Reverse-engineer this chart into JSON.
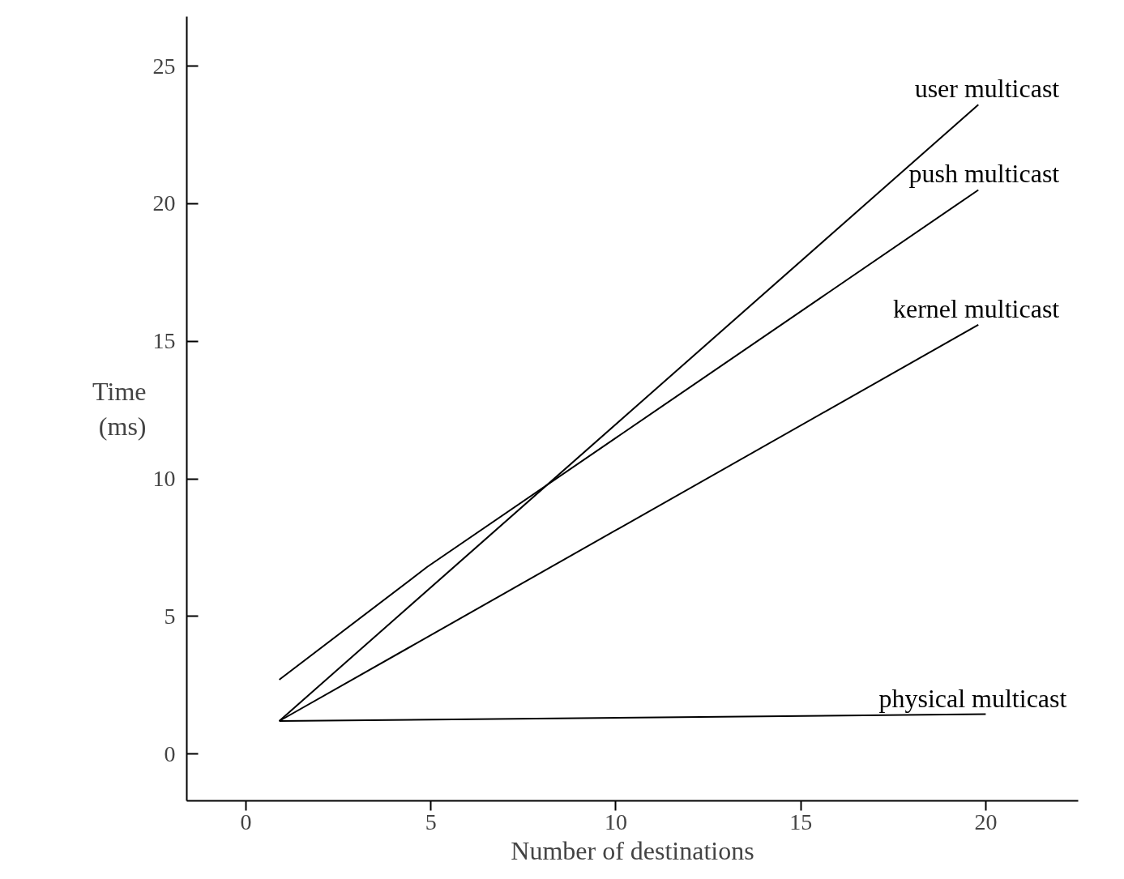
{
  "chart_data": {
    "type": "line",
    "xlabel": "Number of destinations",
    "ylabel": "Time\n(ms)",
    "xlim": [
      -1.6,
      22.5
    ],
    "ylim": [
      -1.7,
      26.8
    ],
    "xticks": [
      0,
      5,
      10,
      15,
      20
    ],
    "yticks": [
      0,
      5,
      10,
      15,
      20,
      25
    ],
    "grid": false,
    "legend": false,
    "marker": "none",
    "line_style": "solid",
    "series": [
      {
        "name": "user multicast",
        "color": "#000000",
        "x": [
          0.9,
          19.8
        ],
        "values": [
          1.2,
          23.6
        ]
      },
      {
        "name": "push multicast",
        "color": "#000000",
        "x": [
          0.9,
          4.9,
          19.8
        ],
        "values": [
          2.7,
          6.8,
          20.5
        ]
      },
      {
        "name": "kernel multicast",
        "color": "#000000",
        "x": [
          0.9,
          19.8
        ],
        "values": [
          1.2,
          15.6
        ]
      },
      {
        "name": "physical multicast",
        "color": "#000000",
        "x": [
          0.9,
          20
        ],
        "values": [
          1.2,
          1.45
        ]
      }
    ]
  }
}
